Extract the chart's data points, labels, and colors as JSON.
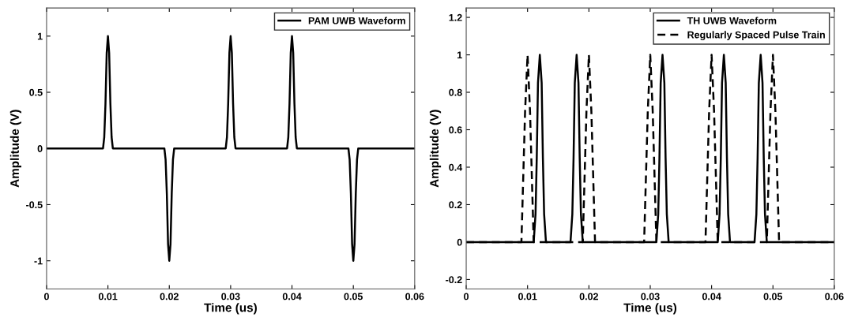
{
  "chart_data": [
    {
      "type": "line",
      "xlabel": "Time (us)",
      "ylabel": "Amplitude (V)",
      "xlim": [
        0,
        0.06
      ],
      "xticks": [
        0,
        0.01,
        0.02,
        0.03,
        0.04,
        0.05,
        0.06
      ],
      "ylim": [
        -1.25,
        1.25
      ],
      "yticks": [
        -1,
        -0.5,
        0,
        0.5,
        1
      ],
      "grid": false,
      "legend": "top right",
      "series": [
        {
          "name": "PAM UWB Waveform",
          "color": "#000000",
          "line_style": "solid",
          "x": [
            0,
            0.0092,
            0.0094,
            0.0096,
            0.0098,
            0.01,
            0.0102,
            0.0104,
            0.0106,
            0.0108,
            0.0192,
            0.0194,
            0.0196,
            0.0198,
            0.02,
            0.0202,
            0.0204,
            0.0206,
            0.0208,
            0.0292,
            0.0294,
            0.0296,
            0.0298,
            0.03,
            0.0302,
            0.0304,
            0.0306,
            0.0308,
            0.0392,
            0.0394,
            0.0396,
            0.0398,
            0.04,
            0.0402,
            0.0404,
            0.0406,
            0.0408,
            0.0492,
            0.0494,
            0.0496,
            0.0498,
            0.05,
            0.0502,
            0.0504,
            0.0506,
            0.0508,
            0.06
          ],
          "values": [
            0,
            0,
            0.1,
            0.4,
            0.85,
            1,
            0.85,
            0.4,
            0.1,
            0,
            0,
            -0.1,
            -0.4,
            -0.85,
            -1,
            -0.85,
            -0.4,
            -0.1,
            0,
            0,
            0.1,
            0.4,
            0.85,
            1,
            0.85,
            0.4,
            0.1,
            0,
            0,
            0.1,
            0.4,
            0.85,
            1,
            0.85,
            0.4,
            0.1,
            0,
            0,
            -0.1,
            -0.4,
            -0.85,
            -1,
            -0.85,
            -0.4,
            -0.1,
            0,
            0
          ]
        }
      ]
    },
    {
      "type": "line",
      "xlabel": "Time (us)",
      "ylabel": "Amplitude (V)",
      "xlim": [
        0,
        0.06
      ],
      "xticks": [
        0,
        0.01,
        0.02,
        0.03,
        0.04,
        0.05,
        0.06
      ],
      "ylim": [
        -0.25,
        1.25
      ],
      "yticks": [
        -0.2,
        0,
        0.2,
        0.4,
        0.6,
        0.8,
        1,
        1.2
      ],
      "grid": false,
      "legend": "top right",
      "series": [
        {
          "name": "TH UWB Waveform",
          "color": "#000000",
          "line_style": "solid",
          "x": [
            0,
            0.011,
            0.0113,
            0.0115,
            0.0117,
            0.012,
            0.0123,
            0.0125,
            0.0127,
            0.013,
            0.017,
            0.0173,
            0.0175,
            0.0177,
            0.018,
            0.0183,
            0.0185,
            0.0187,
            0.019,
            0.031,
            0.0313,
            0.0315,
            0.0317,
            0.032,
            0.0323,
            0.0325,
            0.0327,
            0.033,
            0.041,
            0.0413,
            0.0415,
            0.0417,
            0.042,
            0.0423,
            0.0425,
            0.0427,
            0.043,
            0.047,
            0.0473,
            0.0475,
            0.0477,
            0.048,
            0.0483,
            0.0485,
            0.0487,
            0.049,
            0.06
          ],
          "values": [
            0,
            0,
            0.15,
            0.45,
            0.85,
            1,
            0.85,
            0.45,
            0.15,
            0,
            0,
            0.15,
            0.45,
            0.85,
            1,
            0.85,
            0.45,
            0.15,
            0,
            0,
            0.15,
            0.45,
            0.85,
            1,
            0.85,
            0.45,
            0.15,
            0,
            0,
            0.15,
            0.45,
            0.85,
            1,
            0.85,
            0.45,
            0.15,
            0,
            0,
            0.15,
            0.45,
            0.85,
            1,
            0.85,
            0.45,
            0.15,
            0,
            0
          ]
        },
        {
          "name": "Regularly Spaced Pulse Train",
          "color": "#000000",
          "line_style": "dashed",
          "x": [
            0,
            0.009,
            0.0093,
            0.0096,
            0.01,
            0.0104,
            0.0107,
            0.011,
            0.019,
            0.0193,
            0.0196,
            0.02,
            0.0204,
            0.0207,
            0.021,
            0.029,
            0.0293,
            0.0296,
            0.03,
            0.0304,
            0.0307,
            0.031,
            0.039,
            0.0393,
            0.0396,
            0.04,
            0.0404,
            0.0407,
            0.041,
            0.049,
            0.0493,
            0.0496,
            0.05,
            0.0504,
            0.0507,
            0.051,
            0.06
          ],
          "values": [
            0,
            0,
            0.35,
            0.7,
            1,
            0.7,
            0.35,
            0,
            0,
            0.35,
            0.7,
            1,
            0.7,
            0.35,
            0,
            0,
            0.35,
            0.7,
            1,
            0.7,
            0.35,
            0,
            0,
            0.35,
            0.7,
            1,
            0.7,
            0.35,
            0,
            0,
            0.35,
            0.7,
            1,
            0.7,
            0.35,
            0,
            0
          ]
        }
      ]
    }
  ]
}
